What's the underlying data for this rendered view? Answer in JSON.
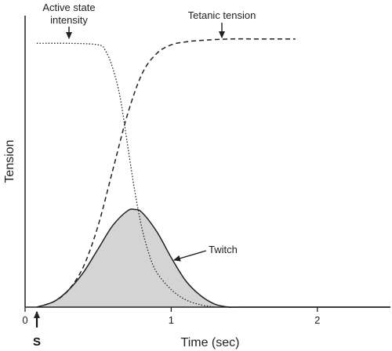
{
  "chart_data": {
    "type": "line",
    "xlabel": "Time (sec)",
    "ylabel": "Tension",
    "xlim": [
      0,
      2.5
    ],
    "ylim": [
      0,
      1
    ],
    "x_ticks": [
      {
        "value": 0,
        "label": "0"
      },
      {
        "value": 1,
        "label": "1"
      },
      {
        "value": 2,
        "label": "2"
      }
    ],
    "grid": false,
    "series": [
      {
        "key": "active_state",
        "style": "dotted",
        "x": [
          0.08,
          0.3,
          0.5,
          0.55,
          0.6,
          0.65,
          0.7,
          0.75,
          0.8,
          0.85,
          0.9,
          1.0,
          1.1,
          1.2,
          1.3
        ],
        "y": [
          0.905,
          0.905,
          0.9,
          0.88,
          0.82,
          0.72,
          0.56,
          0.4,
          0.27,
          0.18,
          0.12,
          0.06,
          0.025,
          0.008,
          0.0
        ]
      },
      {
        "key": "tetanic_tension",
        "style": "dashed",
        "x": [
          0.08,
          0.2,
          0.3,
          0.4,
          0.5,
          0.6,
          0.7,
          0.8,
          0.9,
          1.0,
          1.1,
          1.2,
          1.4,
          1.6,
          1.85
        ],
        "y": [
          0.0,
          0.02,
          0.06,
          0.14,
          0.28,
          0.47,
          0.66,
          0.8,
          0.87,
          0.9,
          0.91,
          0.915,
          0.92,
          0.92,
          0.92
        ]
      },
      {
        "key": "twitch",
        "style": "solid-filled",
        "fill": "#d4d4d4",
        "x": [
          0.08,
          0.2,
          0.3,
          0.4,
          0.5,
          0.6,
          0.7,
          0.75,
          0.8,
          0.9,
          1.0,
          1.1,
          1.2,
          1.3,
          1.4,
          1.5,
          2.5
        ],
        "y": [
          0.0,
          0.02,
          0.06,
          0.12,
          0.2,
          0.28,
          0.33,
          0.335,
          0.325,
          0.26,
          0.17,
          0.09,
          0.04,
          0.01,
          0.0,
          0.0,
          0.0
        ]
      }
    ],
    "annotations": [
      {
        "key": "active",
        "lines": [
          "Active state",
          "intensity"
        ]
      },
      {
        "key": "tetanic",
        "lines": [
          "Tetanic tension"
        ]
      },
      {
        "key": "twitch",
        "lines": [
          "Twitch"
        ]
      }
    ],
    "stimulus": {
      "x": 0.08,
      "label": "S"
    }
  }
}
